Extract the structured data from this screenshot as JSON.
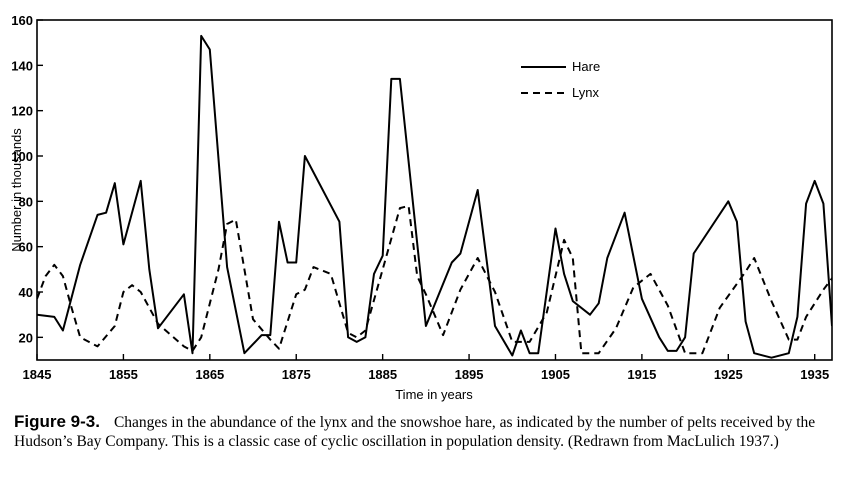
{
  "chart_data": {
    "type": "line",
    "xlabel": "Time in years",
    "ylabel": "Number in thousands",
    "xlim": [
      1845,
      1937
    ],
    "ylim": [
      10,
      160
    ],
    "x_ticks": [
      1845,
      1855,
      1865,
      1875,
      1885,
      1895,
      1905,
      1915,
      1925,
      1935
    ],
    "y_ticks": [
      20,
      40,
      60,
      80,
      100,
      120,
      140,
      160
    ],
    "grid": false,
    "legend_position": "top-right",
    "series": [
      {
        "name": "Hare",
        "style": "solid",
        "points": [
          [
            1845,
            30
          ],
          [
            1847,
            29
          ],
          [
            1848,
            23
          ],
          [
            1850,
            52
          ],
          [
            1852,
            74
          ],
          [
            1853,
            75
          ],
          [
            1854,
            88
          ],
          [
            1855,
            61
          ],
          [
            1857,
            89
          ],
          [
            1858,
            50
          ],
          [
            1859,
            24
          ],
          [
            1862,
            39
          ],
          [
            1863,
            13
          ],
          [
            1864,
            153
          ],
          [
            1865,
            147
          ],
          [
            1867,
            51
          ],
          [
            1869,
            13
          ],
          [
            1871,
            21
          ],
          [
            1872,
            21
          ],
          [
            1873,
            71
          ],
          [
            1874,
            53
          ],
          [
            1875,
            53
          ],
          [
            1876,
            100
          ],
          [
            1880,
            71
          ],
          [
            1881,
            20
          ],
          [
            1882,
            18
          ],
          [
            1883,
            20
          ],
          [
            1884,
            48
          ],
          [
            1885,
            56
          ],
          [
            1886,
            134
          ],
          [
            1887,
            134
          ],
          [
            1890,
            25
          ],
          [
            1893,
            53
          ],
          [
            1894,
            57
          ],
          [
            1896,
            85
          ],
          [
            1898,
            25
          ],
          [
            1900,
            12
          ],
          [
            1901,
            23
          ],
          [
            1902,
            13
          ],
          [
            1903,
            13
          ],
          [
            1905,
            68
          ],
          [
            1906,
            48
          ],
          [
            1907,
            36
          ],
          [
            1909,
            30
          ],
          [
            1910,
            35
          ],
          [
            1911,
            55
          ],
          [
            1913,
            75
          ],
          [
            1915,
            37
          ],
          [
            1917,
            20
          ],
          [
            1918,
            14
          ],
          [
            1919,
            14
          ],
          [
            1920,
            20
          ],
          [
            1921,
            57
          ],
          [
            1925,
            80
          ],
          [
            1926,
            71
          ],
          [
            1927,
            27
          ],
          [
            1928,
            13
          ],
          [
            1930,
            11
          ],
          [
            1932,
            13
          ],
          [
            1933,
            29
          ],
          [
            1934,
            79
          ],
          [
            1935,
            89
          ],
          [
            1936,
            79
          ],
          [
            1937,
            25
          ]
        ]
      },
      {
        "name": "Lynx",
        "style": "dashed",
        "points": [
          [
            1845,
            37
          ],
          [
            1846,
            47
          ],
          [
            1847,
            52
          ],
          [
            1848,
            47
          ],
          [
            1849,
            33
          ],
          [
            1850,
            20
          ],
          [
            1852,
            16
          ],
          [
            1854,
            25
          ],
          [
            1855,
            40
          ],
          [
            1856,
            43
          ],
          [
            1857,
            40
          ],
          [
            1859,
            26
          ],
          [
            1862,
            16
          ],
          [
            1863,
            14
          ],
          [
            1864,
            20
          ],
          [
            1866,
            50
          ],
          [
            1867,
            70
          ],
          [
            1868,
            72
          ],
          [
            1870,
            28
          ],
          [
            1872,
            19
          ],
          [
            1873,
            15
          ],
          [
            1875,
            39
          ],
          [
            1876,
            41
          ],
          [
            1877,
            51
          ],
          [
            1879,
            48
          ],
          [
            1881,
            22
          ],
          [
            1882,
            20
          ],
          [
            1883,
            23
          ],
          [
            1885,
            50
          ],
          [
            1887,
            77
          ],
          [
            1888,
            78
          ],
          [
            1889,
            47
          ],
          [
            1890,
            39
          ],
          [
            1892,
            21
          ],
          [
            1894,
            41
          ],
          [
            1896,
            55
          ],
          [
            1898,
            40
          ],
          [
            1900,
            18
          ],
          [
            1902,
            18
          ],
          [
            1904,
            31
          ],
          [
            1906,
            63
          ],
          [
            1907,
            55
          ],
          [
            1908,
            13
          ],
          [
            1910,
            13
          ],
          [
            1912,
            24
          ],
          [
            1914,
            42
          ],
          [
            1916,
            48
          ],
          [
            1918,
            34
          ],
          [
            1920,
            13
          ],
          [
            1922,
            13
          ],
          [
            1924,
            33
          ],
          [
            1927,
            49
          ],
          [
            1928,
            55
          ],
          [
            1930,
            36
          ],
          [
            1932,
            19
          ],
          [
            1933,
            19
          ],
          [
            1934,
            29
          ],
          [
            1936,
            41
          ],
          [
            1938,
            51
          ],
          [
            1939,
            46
          ]
        ]
      }
    ]
  },
  "caption": {
    "label": "Figure 9-3.",
    "text": "Changes in the abundance of the lynx and the snowshoe hare, as indicated by the number of pelts received by the Hudson’s Bay Company. This is a classic case of cyclic oscillation in population density. (Redrawn from MacLulich 1937.)"
  }
}
